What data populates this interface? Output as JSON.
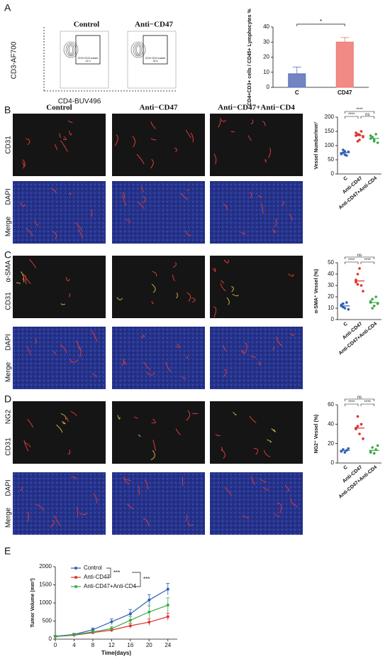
{
  "panel_labels": [
    "A",
    "B",
    "C",
    "D",
    "E"
  ],
  "flow": {
    "y_label": "CD3-AF700",
    "x_label": "CD4-BUV496",
    "groups": [
      {
        "name": "Control",
        "gate_label": "CD4+CD3+subset",
        "gate_value": "14.0"
      },
      {
        "name": "Anti−CD47",
        "gate_label": "CD4+CD3+subset",
        "gate_value": "30.5"
      }
    ]
  },
  "micrographs": {
    "columns": [
      "Control",
      "Anti−CD47",
      "Anti−CD47+Anti−CD4"
    ],
    "panels": [
      {
        "rows": [
          [
            {
              "text": "CD31",
              "color": "#e0302a"
            }
          ],
          [
            {
              "text": "DAPI",
              "color": "#3a3fbf"
            },
            {
              "text": "Merge",
              "color": "#222222"
            }
          ]
        ]
      },
      {
        "rows": [
          [
            {
              "text": "α-SMA",
              "color": "#2aa845"
            },
            {
              "text": "CD31",
              "color": "#e0302a"
            }
          ],
          [
            {
              "text": "DAPI",
              "color": "#3a3fbf"
            },
            {
              "text": "Merge",
              "color": "#222222"
            }
          ]
        ]
      },
      {
        "rows": [
          [
            {
              "text": "NG2",
              "color": "#2aa845"
            },
            {
              "text": "CD31",
              "color": "#e0302a"
            }
          ],
          [
            {
              "text": "DAPI",
              "color": "#3a3fbf"
            },
            {
              "text": "Merge",
              "color": "#222222"
            }
          ]
        ]
      }
    ]
  },
  "chart_data": [
    {
      "type": "bar",
      "y_label": "CD4+CD3+ cells / CD45+ Lymphocytes %",
      "categories": [
        "C",
        "CD47"
      ],
      "values": [
        9,
        30
      ],
      "errors": [
        4.5,
        3
      ],
      "colors": [
        "#5a6fb8",
        "#ee7670"
      ],
      "ylim": [
        0,
        40
      ],
      "yticks": [
        0,
        10,
        20,
        30,
        40
      ],
      "significance": "*"
    },
    {
      "type": "strip",
      "y_label": "Vessel Number/mm³",
      "categories": [
        "C",
        "Anti-CD47",
        "Anti-CD47+Anti-CD4"
      ],
      "values": [
        [
          70,
          75,
          80,
          65,
          78,
          72,
          85,
          68
        ],
        [
          135,
          140,
          120,
          150,
          130,
          145,
          115,
          138
        ],
        [
          125,
          130,
          115,
          140,
          110,
          135,
          128,
          120
        ]
      ],
      "means": [
        75,
        135,
        125
      ],
      "colors": [
        "#2d5fb5",
        "#e0302a",
        "#3aa845"
      ],
      "ylim": [
        0,
        200
      ],
      "yticks": [
        0,
        50,
        100,
        150,
        200
      ],
      "significance": [
        "****",
        "ns",
        "****"
      ]
    },
    {
      "type": "strip",
      "y_label": "α-SMA⁺ Vessel (%)",
      "categories": [
        "C",
        "Anti-CD47",
        "Anti-CD47+Anti-CD4"
      ],
      "values": [
        [
          12,
          14,
          10,
          15,
          9,
          13,
          11
        ],
        [
          33,
          40,
          45,
          30,
          25,
          35,
          31
        ],
        [
          15,
          18,
          12,
          20,
          14,
          16,
          10
        ]
      ],
      "means": [
        12,
        34,
        15
      ],
      "colors": [
        "#2d5fb5",
        "#e0302a",
        "#3aa845"
      ],
      "ylim": [
        0,
        50
      ],
      "yticks": [
        0,
        10,
        20,
        30,
        40,
        50
      ],
      "significance": [
        "****",
        "****",
        "ns"
      ]
    },
    {
      "type": "strip",
      "y_label": "NG2⁺ Vessel (%)",
      "categories": [
        "C",
        "Anti-CD47",
        "Anti-CD47+Anti-CD4"
      ],
      "values": [
        [
          12,
          14,
          11,
          13,
          15,
          12
        ],
        [
          36,
          48,
          30,
          40,
          25,
          35,
          38
        ],
        [
          12,
          16,
          10,
          14,
          18,
          11
        ]
      ],
      "means": [
        13,
        36,
        13
      ],
      "colors": [
        "#2d5fb5",
        "#e0302a",
        "#3aa845"
      ],
      "ylim": [
        0,
        60
      ],
      "yticks": [
        0,
        20,
        40,
        60
      ],
      "significance": [
        "****",
        "****",
        "ns"
      ]
    },
    {
      "type": "line",
      "y_label": "Tumor Volume (mm³)",
      "x_label": "Time(days)",
      "x": [
        0,
        4,
        8,
        12,
        16,
        20,
        24
      ],
      "xlim": [
        0,
        26
      ],
      "xticks": [
        0,
        4,
        8,
        12,
        16,
        20,
        24
      ],
      "ylim": [
        0,
        2000
      ],
      "yticks": [
        0,
        500,
        1000,
        1500,
        2000
      ],
      "series": [
        {
          "name": "Control",
          "color": "#2d5fb5",
          "values": [
            80,
            130,
            260,
            480,
            700,
            1080,
            1380
          ],
          "errors": [
            20,
            30,
            50,
            80,
            120,
            150,
            160
          ]
        },
        {
          "name": "Anti-CD47",
          "color": "#e0302a",
          "values": [
            70,
            110,
            180,
            250,
            370,
            470,
            620
          ],
          "errors": [
            15,
            20,
            30,
            50,
            70,
            90,
            100
          ]
        },
        {
          "name": "Anti-CD47+Anti-CD4",
          "color": "#3aa845",
          "values": [
            70,
            120,
            200,
            290,
            520,
            750,
            940
          ],
          "errors": [
            15,
            25,
            40,
            60,
            110,
            170,
            200
          ]
        }
      ],
      "significance": [
        "***",
        "***"
      ]
    }
  ]
}
